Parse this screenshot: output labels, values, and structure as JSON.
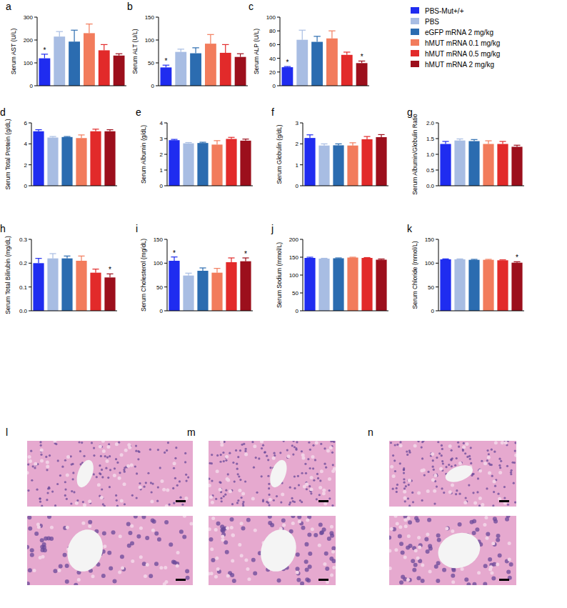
{
  "chart_data": [
    {
      "type": "bar",
      "panel": "a",
      "y_label": "Serum AST (U/L)",
      "categories": [
        "PBS-Mut+/+",
        "PBS",
        "eGFP mRNA 2 mg/kg",
        "hMUT mRNA 0.1 mg/kg",
        "hMUT mRNA 0.5 mg/kg",
        "hMUT mRNA 2 mg/kg"
      ],
      "legend": "right",
      "values": [
        120,
        215,
        193,
        230,
        155,
        132
      ],
      "errors": [
        18,
        22,
        50,
        40,
        25,
        8
      ],
      "significance": [
        "*",
        null,
        null,
        null,
        null,
        null
      ],
      "colors": [
        "#1f2cf0",
        "#a8bde3",
        "#2b6cb0",
        "#f27c5c",
        "#e22a2a",
        "#9c0f1c"
      ],
      "ylim": [
        0,
        300
      ],
      "yticks": [
        0,
        100,
        200,
        300
      ],
      "tick_labels": "y"
    },
    {
      "type": "bar",
      "panel": "b",
      "y_label": "Serum ALT (U/L)",
      "values": [
        40,
        74,
        71,
        92,
        72,
        63
      ],
      "errors": [
        5,
        6,
        12,
        20,
        18,
        7
      ],
      "significance": [
        "*",
        null,
        null,
        null,
        null,
        null
      ],
      "colors": [
        "#1f2cf0",
        "#a8bde3",
        "#2b6cb0",
        "#f27c5c",
        "#e22a2a",
        "#9c0f1c"
      ],
      "ylim": [
        0,
        150
      ],
      "yticks": [
        0,
        50,
        100,
        150
      ],
      "tick_labels": "y"
    },
    {
      "type": "bar",
      "panel": "c",
      "y_label": "Serum ALP (U/L)",
      "values": [
        27,
        67,
        64,
        69,
        45,
        33
      ],
      "errors": [
        1,
        14,
        8,
        11,
        4,
        3
      ],
      "significance": [
        "*",
        null,
        null,
        null,
        null,
        "*"
      ],
      "colors": [
        "#1f2cf0",
        "#a8bde3",
        "#2b6cb0",
        "#f27c5c",
        "#e22a2a",
        "#9c0f1c"
      ],
      "ylim": [
        0,
        100
      ],
      "yticks": [
        0,
        20,
        40,
        60,
        80,
        100
      ],
      "tick_labels": "y"
    },
    {
      "type": "bar",
      "panel": "d",
      "y_label": "Serum Total Protein (g/dL)",
      "values": [
        5.2,
        4.6,
        4.65,
        4.55,
        5.2,
        5.2
      ],
      "errors": [
        0.15,
        0.1,
        0.05,
        0.3,
        0.2,
        0.15
      ],
      "significance": [
        null,
        null,
        null,
        null,
        null,
        null
      ],
      "colors": [
        "#1f2cf0",
        "#a8bde3",
        "#2b6cb0",
        "#f27c5c",
        "#e22a2a",
        "#9c0f1c"
      ],
      "ylim": [
        0,
        6
      ],
      "yticks": [
        0,
        2,
        4,
        6
      ],
      "tick_labels": "y"
    },
    {
      "type": "bar",
      "panel": "e",
      "y_label": "Serum Albumin (g/dL)",
      "values": [
        2.9,
        2.7,
        2.72,
        2.62,
        2.98,
        2.87
      ],
      "errors": [
        0.05,
        0.05,
        0.05,
        0.25,
        0.1,
        0.1
      ],
      "significance": [
        null,
        null,
        null,
        null,
        null,
        null
      ],
      "colors": [
        "#1f2cf0",
        "#a8bde3",
        "#2b6cb0",
        "#f27c5c",
        "#e22a2a",
        "#9c0f1c"
      ],
      "ylim": [
        0,
        4
      ],
      "yticks": [
        0,
        1,
        2,
        3,
        4
      ],
      "tick_labels": "y"
    },
    {
      "type": "bar",
      "panel": "f",
      "y_label": "Serum Globulin (g/dL)",
      "values": [
        2.28,
        1.92,
        1.93,
        1.92,
        2.22,
        2.32
      ],
      "errors": [
        0.15,
        0.08,
        0.07,
        0.13,
        0.13,
        0.12
      ],
      "significance": [
        null,
        null,
        null,
        null,
        null,
        null
      ],
      "colors": [
        "#1f2cf0",
        "#a8bde3",
        "#2b6cb0",
        "#f27c5c",
        "#e22a2a",
        "#9c0f1c"
      ],
      "ylim": [
        0,
        3
      ],
      "yticks": [
        0,
        1,
        2,
        3
      ],
      "tick_labels": "y"
    },
    {
      "type": "bar",
      "panel": "g",
      "y_label": "Serum Albumin/Globulin Ratio",
      "values": [
        1.33,
        1.44,
        1.42,
        1.33,
        1.33,
        1.24
      ],
      "errors": [
        0.08,
        0.05,
        0.05,
        0.1,
        0.08,
        0.05
      ],
      "significance": [
        null,
        null,
        null,
        null,
        null,
        null
      ],
      "colors": [
        "#1f2cf0",
        "#a8bde3",
        "#2b6cb0",
        "#f27c5c",
        "#e22a2a",
        "#9c0f1c"
      ],
      "ylim": [
        0,
        2
      ],
      "yticks": [
        {
          "value": 0,
          "label": "0.0"
        },
        0.5,
        {
          "value": 1,
          "label": "1.0"
        },
        1.5,
        {
          "value": 2,
          "label": "2.0"
        }
      ],
      "tick_labels": "y"
    },
    {
      "type": "bar",
      "panel": "h",
      "y_label": "Serum Total Bilirubin (mg/dL)",
      "values": [
        0.2,
        0.22,
        0.22,
        0.21,
        0.16,
        0.14
      ],
      "errors": [
        0.02,
        0.02,
        0.01,
        0.02,
        0.015,
        0.015
      ],
      "significance": [
        null,
        null,
        null,
        null,
        null,
        "*"
      ],
      "colors": [
        "#1f2cf0",
        "#a8bde3",
        "#2b6cb0",
        "#f27c5c",
        "#e22a2a",
        "#9c0f1c"
      ],
      "ylim": [
        0,
        0.3
      ],
      "yticks": [
        {
          "value": 0,
          "label": "0.0"
        },
        0.1,
        0.2,
        0.3
      ],
      "tick_labels": "y"
    },
    {
      "type": "bar",
      "panel": "i",
      "y_label": "Serum Cholesterol (mg/dL)",
      "values": [
        105,
        74,
        84,
        80,
        102,
        104
      ],
      "errors": [
        8,
        5,
        6,
        9,
        9,
        7
      ],
      "significance": [
        "*",
        null,
        null,
        null,
        null,
        "*"
      ],
      "colors": [
        "#1f2cf0",
        "#a8bde3",
        "#2b6cb0",
        "#f27c5c",
        "#e22a2a",
        "#9c0f1c"
      ],
      "ylim": [
        0,
        150
      ],
      "yticks": [
        0,
        50,
        100,
        150
      ],
      "tick_labels": "y"
    },
    {
      "type": "bar",
      "panel": "j",
      "y_label": "Serum Sodium (mmol/L)",
      "values": [
        148,
        146,
        147,
        149,
        148,
        143
      ],
      "errors": [
        2,
        1,
        1,
        1,
        1,
        2
      ],
      "significance": [
        null,
        null,
        null,
        null,
        null,
        null
      ],
      "colors": [
        "#1f2cf0",
        "#a8bde3",
        "#2b6cb0",
        "#f27c5c",
        "#e22a2a",
        "#9c0f1c"
      ],
      "ylim": [
        0,
        200
      ],
      "yticks": [
        0,
        50,
        100,
        150,
        200
      ],
      "tick_labels": "y"
    },
    {
      "type": "bar",
      "panel": "k",
      "y_label": "Serum Chloride (mmol/L)",
      "values": [
        108,
        108,
        107,
        107,
        106,
        101
      ],
      "errors": [
        1,
        1,
        1,
        1,
        1,
        2
      ],
      "significance": [
        null,
        null,
        null,
        null,
        null,
        "*"
      ],
      "colors": [
        "#1f2cf0",
        "#a8bde3",
        "#2b6cb0",
        "#f27c5c",
        "#e22a2a",
        "#9c0f1c"
      ],
      "ylim": [
        0,
        150
      ],
      "yticks": [
        0,
        50,
        100,
        150
      ],
      "tick_labels": "y"
    }
  ],
  "image_panels": [
    "l",
    "m",
    "n"
  ]
}
